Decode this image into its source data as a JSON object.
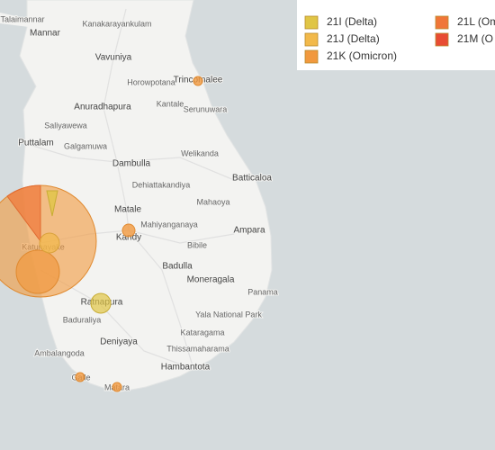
{
  "legend": {
    "items": [
      "21I (Delta)",
      "21L (Om",
      "21J (Delta)",
      "21M (O",
      "21K (Omicron)"
    ]
  },
  "places": [
    "Talaimannar",
    "Mannar",
    "Kanakarayankulam",
    "Vavuniya",
    "Horowpotana",
    "Trincomalee",
    "Anuradhapura",
    "Kantale",
    "Serunuwara",
    "Saliyawewa",
    "Puttalam",
    "Galgamuwa",
    "Dambulla",
    "Welikanda",
    "Batticaloa",
    "Dehiattakandiya",
    "Mahaoya",
    "Matale",
    "Mahiyanganaya",
    "Kandy",
    "Ampara",
    "Bibile",
    "Katunayake",
    "Badulla",
    "Moneragala",
    "Panama",
    "Ratnapura",
    "Yala National Park",
    "Baduraliya",
    "Deniyaya",
    "Kataragama",
    "Thissamaharama",
    "Ambalangoda",
    "Hambantota",
    "Galle",
    "Matara"
  ]
}
